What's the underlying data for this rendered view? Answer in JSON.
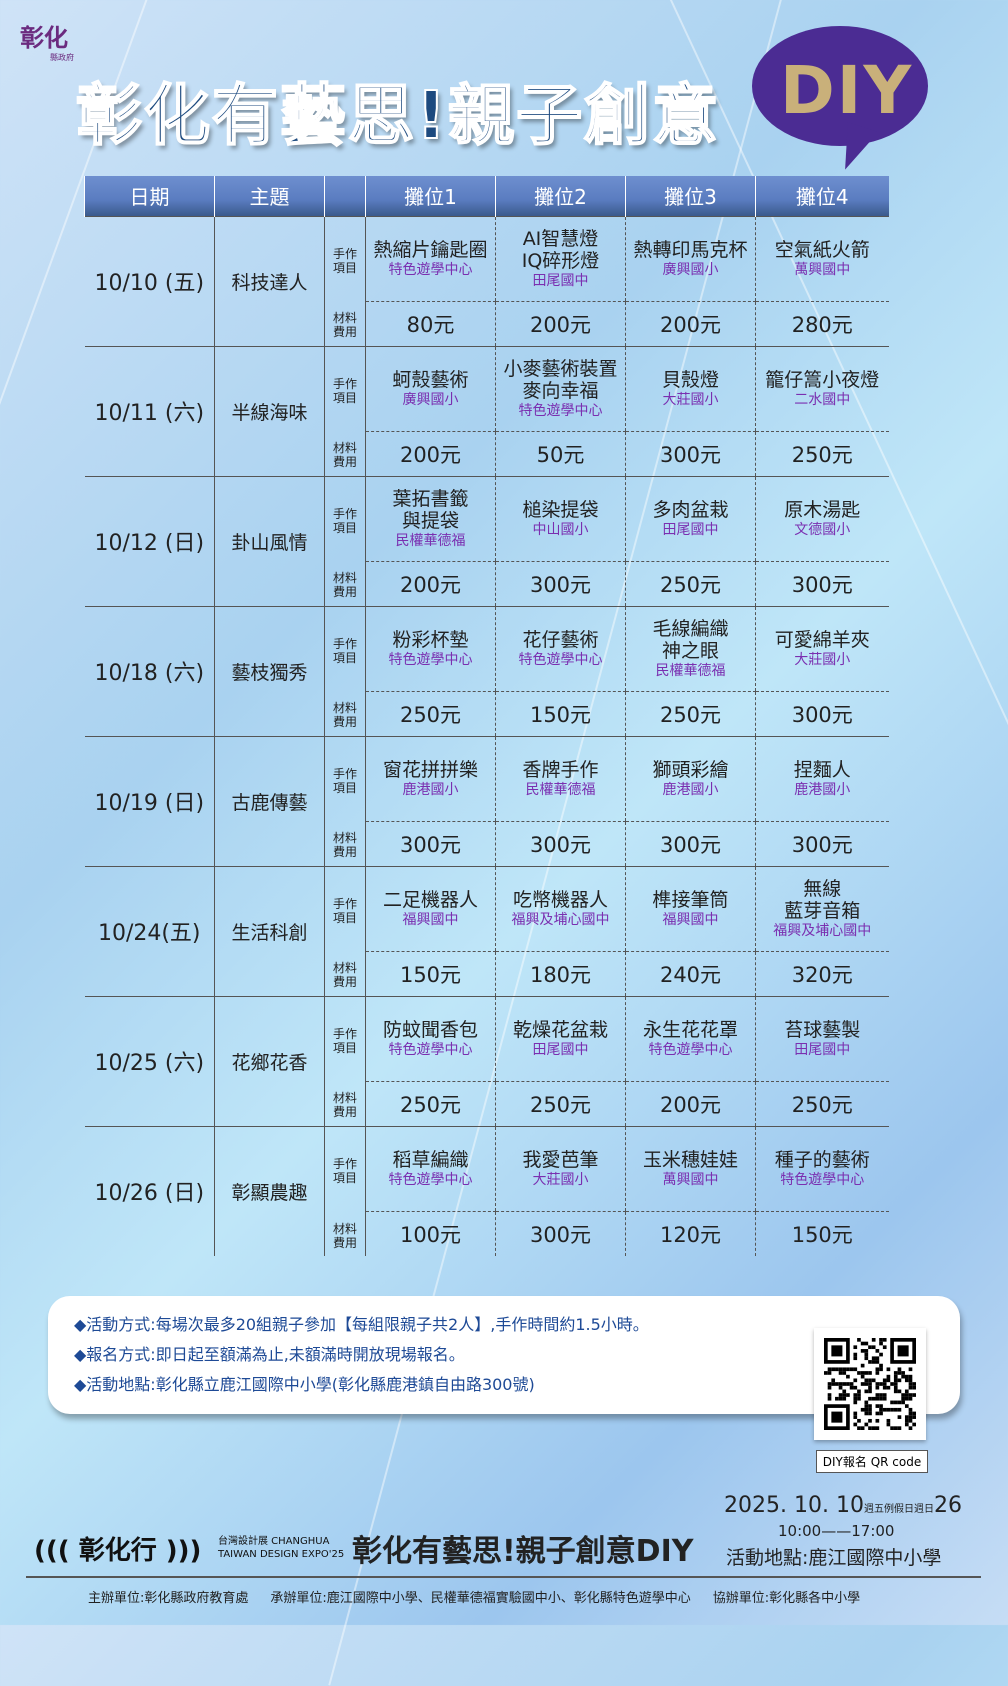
{
  "logo": {
    "line1": "彰化",
    "line2": "縣政府"
  },
  "title": "彰化有藝思!親子創意",
  "title_diy": "DIY",
  "table": {
    "headers": [
      "日期",
      "主題",
      "",
      "攤位1",
      "攤位2",
      "攤位3",
      "攤位4"
    ],
    "label_item": "手作\n項目",
    "label_cost": "材料\n費用",
    "rows": [
      {
        "date": "10/10 (五)",
        "theme": "科技達人",
        "items": [
          {
            "name": "熱縮片鑰匙圈",
            "school": "特色遊學中心",
            "cost": "80元"
          },
          {
            "name": "AI智慧燈\nIQ碎形燈",
            "school": "田尾國中",
            "cost": "200元"
          },
          {
            "name": "熱轉印馬克杯",
            "school": "廣興國小",
            "cost": "200元"
          },
          {
            "name": "空氣紙火箭",
            "school": "萬興國中",
            "cost": "280元"
          }
        ]
      },
      {
        "date": "10/11 (六)",
        "theme": "半線海味",
        "items": [
          {
            "name": "蚵殼藝術",
            "school": "廣興國小",
            "cost": "200元"
          },
          {
            "name": "小麥藝術裝置\n麥向幸福",
            "school": "特色遊學中心",
            "cost": "50元"
          },
          {
            "name": "貝殼燈",
            "school": "大莊國小",
            "cost": "300元"
          },
          {
            "name": "籠仔篙小夜燈",
            "school": "二水國中",
            "cost": "250元"
          }
        ]
      },
      {
        "date": "10/12 (日)",
        "theme": "卦山風情",
        "items": [
          {
            "name": "葉拓書籤\n與提袋",
            "school": "民權華德福",
            "cost": "200元"
          },
          {
            "name": "槌染提袋",
            "school": "中山國小",
            "cost": "300元"
          },
          {
            "name": "多肉盆栽",
            "school": "田尾國中",
            "cost": "250元"
          },
          {
            "name": "原木湯匙",
            "school": "文德國小",
            "cost": "300元"
          }
        ]
      },
      {
        "date": "10/18 (六)",
        "theme": "藝枝獨秀",
        "items": [
          {
            "name": "粉彩杯墊",
            "school": "特色遊學中心",
            "cost": "250元"
          },
          {
            "name": "花仔藝術",
            "school": "特色遊學中心",
            "cost": "150元"
          },
          {
            "name": "毛線編織\n神之眼",
            "school": "民權華德福",
            "cost": "250元"
          },
          {
            "name": "可愛綿羊夾",
            "school": "大莊國小",
            "cost": "300元"
          }
        ]
      },
      {
        "date": "10/19 (日)",
        "theme": "古鹿傳藝",
        "items": [
          {
            "name": "窗花拼拼樂",
            "school": "鹿港國小",
            "cost": "300元"
          },
          {
            "name": "香牌手作",
            "school": "民權華德福",
            "cost": "300元"
          },
          {
            "name": "獅頭彩繪",
            "school": "鹿港國小",
            "cost": "300元"
          },
          {
            "name": "捏麵人",
            "school": "鹿港國小",
            "cost": "300元"
          }
        ]
      },
      {
        "date": "10/24(五)",
        "theme": "生活科創",
        "items": [
          {
            "name": "二足機器人",
            "school": "福興國中",
            "cost": "150元"
          },
          {
            "name": "吃幣機器人",
            "school": "福興及埔心國中",
            "cost": "180元"
          },
          {
            "name": "榫接筆筒",
            "school": "福興國中",
            "cost": "240元"
          },
          {
            "name": "無線\n藍芽音箱",
            "school": "福興及埔心國中",
            "cost": "320元"
          }
        ]
      },
      {
        "date": "10/25 (六)",
        "theme": "花鄉花香",
        "items": [
          {
            "name": "防蚊聞香包",
            "school": "特色遊學中心",
            "cost": "250元"
          },
          {
            "name": "乾燥花盆栽",
            "school": "田尾國中",
            "cost": "250元"
          },
          {
            "name": "永生花花罩",
            "school": "特色遊學中心",
            "cost": "200元"
          },
          {
            "name": "苔球藝製",
            "school": "田尾國中",
            "cost": "250元"
          }
        ]
      },
      {
        "date": "10/26 (日)",
        "theme": "彰顯農趣",
        "items": [
          {
            "name": "稻草編織",
            "school": "特色遊學中心",
            "cost": "100元"
          },
          {
            "name": "我愛芭筆",
            "school": "大莊國小",
            "cost": "300元"
          },
          {
            "name": "玉米穗娃娃",
            "school": "萬興國中",
            "cost": "120元"
          },
          {
            "name": "種子的藝術",
            "school": "特色遊學中心",
            "cost": "150元"
          }
        ]
      }
    ]
  },
  "info": [
    "◆活動方式:每場次最多20組親子參加【每組限親子共2人】,手作時間約1.5小時。",
    "◆報名方式:即日起至額滿為止,未額滿時開放現場報名。",
    "◆活動地點:彰化縣立鹿江國際中小學(彰化縣鹿港鎮自由路300號)"
  ],
  "qr_caption": "DIY報名 QR code",
  "footer": {
    "date": "2025. 10. 10",
    "wd1": "週五",
    "mid": "例假日",
    "wd2": "週日",
    "end": "26",
    "time": "10:00——17:00",
    "location": "活動地點:鹿江國際中小學",
    "logo": "((( 彰化行 )))",
    "expo1": "台灣設計展 CHANGHUA",
    "expo2": "TAIWAN DESIGN EXPO'25",
    "title": "彰化有藝思!親子創意DIY",
    "organizers": [
      "主辦單位:彰化縣政府教育處",
      "承辦單位:鹿江國際中小學、民權華德福實驗國中小、彰化縣特色遊學中心",
      "協辦單位:彰化縣各中小學"
    ]
  },
  "colors": {
    "header": "#5a7cc0",
    "date": "#d8242e",
    "school": "#7a2fb0",
    "title": "#1d4a7f",
    "bubble": "#4b2c93",
    "info_text": "#1e4a96"
  }
}
